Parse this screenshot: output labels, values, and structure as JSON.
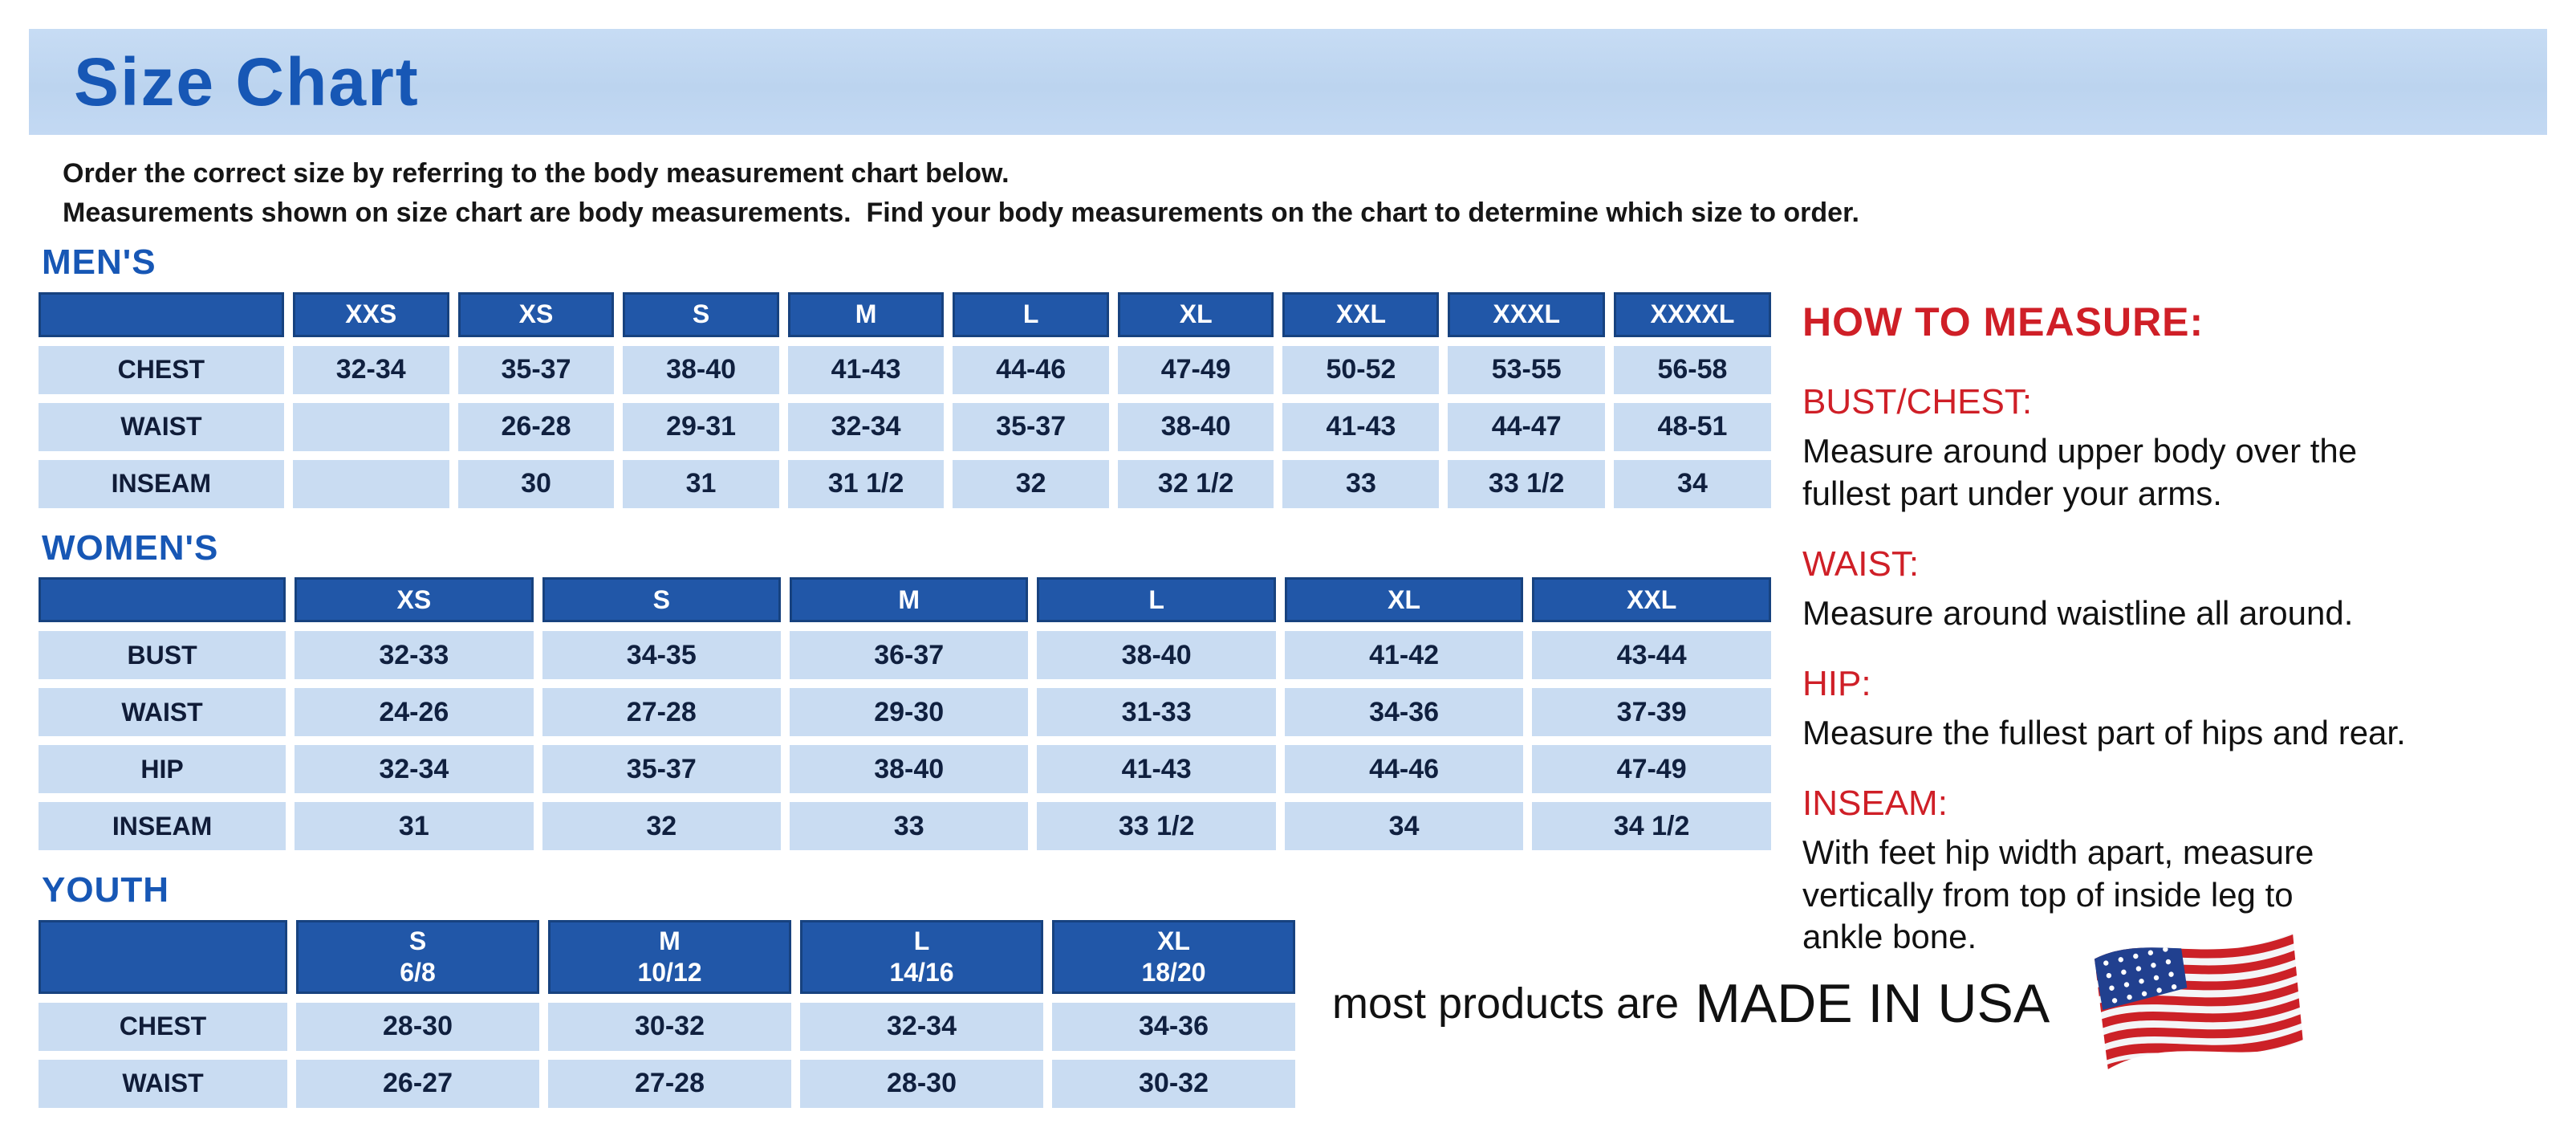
{
  "page": {
    "title": "Size Chart",
    "intro_line1": "Order the correct size by referring to the body measurement chart below.",
    "intro_line2": "Measurements shown on size chart are body measurements.  Find your body measurements on the chart to determine which size to order."
  },
  "colors": {
    "accent_blue": "#1757b5",
    "table_header_blue": "#2157a8",
    "table_cell_blue": "#c9dcf2",
    "banner_blue": "#bfd6f1",
    "heading_red": "#cf1f27",
    "flag_red": "#cc2127",
    "flag_navy": "#21408f"
  },
  "tables": [
    {
      "section_label": "MEN'S",
      "columns": [
        "",
        "XXS",
        "XS",
        "S",
        "M",
        "L",
        "XL",
        "XXL",
        "XXXL",
        "XXXXL"
      ],
      "rows": [
        [
          "CHEST",
          "32-34",
          "35-37",
          "38-40",
          "41-43",
          "44-46",
          "47-49",
          "50-52",
          "53-55",
          "56-58"
        ],
        [
          "WAIST",
          "",
          "26-28",
          "29-31",
          "32-34",
          "35-37",
          "38-40",
          "41-43",
          "44-47",
          "48-51"
        ],
        [
          "INSEAM",
          "",
          "30",
          "31",
          "31 1/2",
          "32",
          "32 1/2",
          "33",
          "33 1/2",
          "34"
        ]
      ]
    },
    {
      "section_label": "WOMEN'S",
      "columns": [
        "",
        "XS",
        "S",
        "M",
        "L",
        "XL",
        "XXL"
      ],
      "rows": [
        [
          "BUST",
          "32-33",
          "34-35",
          "36-37",
          "38-40",
          "41-42",
          "43-44"
        ],
        [
          "WAIST",
          "24-26",
          "27-28",
          "29-30",
          "31-33",
          "34-36",
          "37-39"
        ],
        [
          "HIP",
          "32-34",
          "35-37",
          "38-40",
          "41-43",
          "44-46",
          "47-49"
        ],
        [
          "INSEAM",
          "31",
          "32",
          "33",
          "33 1/2",
          "34",
          "34 1/2"
        ]
      ]
    },
    {
      "section_label": "YOUTH",
      "columns": [
        "",
        "S\n6/8",
        "M\n10/12",
        "L\n14/16",
        "XL\n18/20"
      ],
      "rows": [
        [
          "CHEST",
          "28-30",
          "30-32",
          "32-34",
          "34-36"
        ],
        [
          "WAIST",
          "26-27",
          "27-28",
          "28-30",
          "30-32"
        ]
      ]
    }
  ],
  "how_to_measure": {
    "title": "HOW TO MEASURE:",
    "sections": [
      {
        "label": "BUST/CHEST:",
        "text": "Measure around upper body over the\nfullest part under your arms."
      },
      {
        "label": "WAIST:",
        "text": "Measure around waistline all around."
      },
      {
        "label": "HIP:",
        "text": "Measure the fullest part of hips and rear."
      },
      {
        "label": "INSEAM:",
        "text": "With feet hip width apart, measure\nvertically from top of inside leg to\nankle bone."
      }
    ]
  },
  "footer": {
    "made_in_prefix": "most products are",
    "made_in_main": "MADE IN USA",
    "flag_icon": "us-flag-icon"
  }
}
